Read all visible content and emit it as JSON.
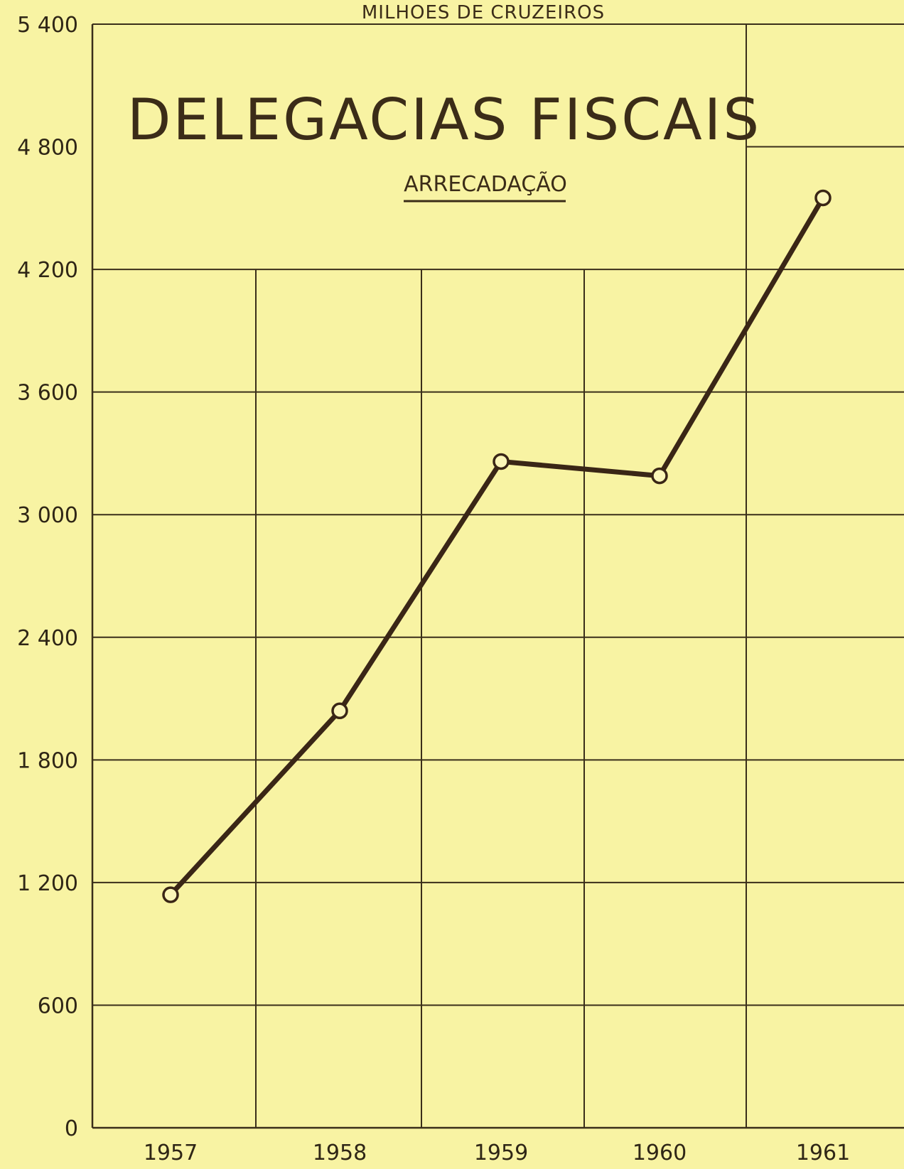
{
  "chart_data": {
    "type": "line",
    "unit_label": "MILHOES DE CRUZEIROS",
    "title": "DELEGACIAS FISCAIS",
    "subtitle": "ARRECADAÇÃO",
    "categories": [
      "1957",
      "1958",
      "1959",
      "1960",
      "1961"
    ],
    "series": [
      {
        "values": [
          1140,
          2040,
          3260,
          3190,
          4550
        ]
      }
    ],
    "y_ticks": [
      {
        "value": 0,
        "label": "0"
      },
      {
        "value": 600,
        "label": "600"
      },
      {
        "value": 1200,
        "label": "1 200"
      },
      {
        "value": 1800,
        "label": "1 800"
      },
      {
        "value": 2400,
        "label": "2 400"
      },
      {
        "value": 3000,
        "label": "3 000"
      },
      {
        "value": 3600,
        "label": "3 600"
      },
      {
        "value": 4200,
        "label": "4 200"
      },
      {
        "value": 4800,
        "label": "4 800"
      },
      {
        "value": 5400,
        "label": "5 400"
      }
    ],
    "ylim": [
      0,
      5400
    ],
    "grid": true,
    "colors": {
      "background": "#f8f3a3",
      "ink": "#3a2616"
    }
  }
}
